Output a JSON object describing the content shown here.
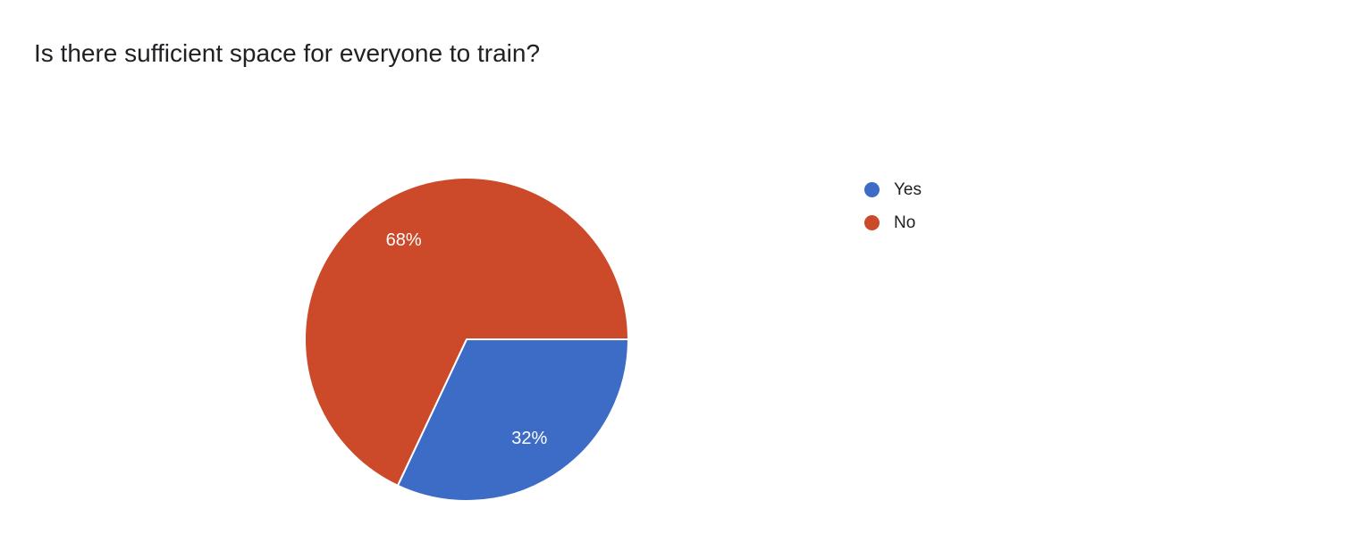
{
  "question": {
    "title": "Is there sufficient space for everyone to train?"
  },
  "chart_data": {
    "type": "pie",
    "title": "Is there sufficient space for everyone to train?",
    "slices": [
      {
        "label": "Yes",
        "percent": 32,
        "data_label": "32%",
        "color": "#3d6cc7"
      },
      {
        "label": "No",
        "percent": 68,
        "data_label": "68%",
        "color": "#cc4a29"
      }
    ],
    "start_angle_deg": 0,
    "direction": "clockwise",
    "legend_position": "right",
    "label_color": "#ffffff",
    "separator_color": "#ffffff",
    "background": "#ffffff",
    "title_color": "#202124",
    "legend_text_color": "#202124"
  }
}
